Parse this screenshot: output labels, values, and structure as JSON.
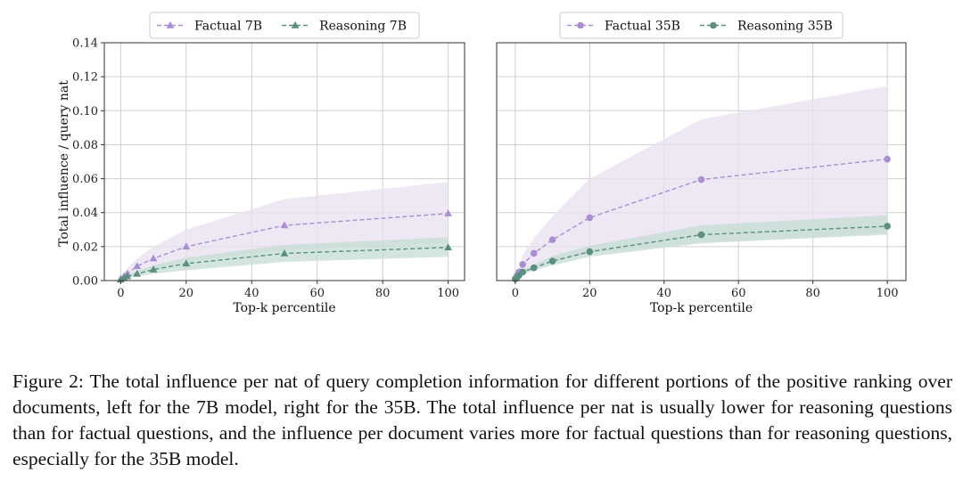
{
  "figure": {
    "caption": "Figure 2: The total influence per nat of query completion information for different portions of the positive ranking over documents, left for the 7B model, right for the 35B. The total influence per nat is usually lower for reasoning questions than for factual questions, and the influence per document varies more for factual questions than for reasoning questions, especially for the 35B model."
  },
  "colors": {
    "factual": "#a98fd1",
    "factual_band": "#e8e0f2",
    "reasoning": "#5b8f7f",
    "reasoning_band": "#c4dcd3",
    "grid": "#d0d0d0",
    "axis": "#333333"
  },
  "chart_data": [
    {
      "type": "line",
      "title": "",
      "xlabel": "Top-k percentile",
      "ylabel": "Total influence / query nat",
      "xlim": [
        -5,
        105
      ],
      "ylim": [
        0,
        0.14
      ],
      "xticks": [
        0,
        20,
        40,
        60,
        80,
        100
      ],
      "yticks": [
        0.0,
        0.02,
        0.04,
        0.06,
        0.08,
        0.1,
        0.12,
        0.14
      ],
      "ytick_labels": [
        "0.00",
        "0.02",
        "0.04",
        "0.06",
        "0.08",
        "0.10",
        "0.12",
        "0.14"
      ],
      "grid": true,
      "legend_position": "top-center",
      "series": [
        {
          "name": "Factual 7B",
          "marker": "triangle",
          "color_key": "factual",
          "x": [
            0,
            1,
            2,
            5,
            10,
            20,
            50,
            100
          ],
          "y": [
            0.001,
            0.0025,
            0.004,
            0.0085,
            0.013,
            0.02,
            0.0325,
            0.0395
          ],
          "band_low": [
            0.0005,
            0.001,
            0.002,
            0.004,
            0.007,
            0.011,
            0.018,
            0.022
          ],
          "band_high": [
            0.0015,
            0.004,
            0.0075,
            0.013,
            0.02,
            0.03,
            0.048,
            0.058
          ]
        },
        {
          "name": "Reasoning 7B",
          "marker": "triangle",
          "color_key": "reasoning",
          "x": [
            0,
            1,
            2,
            5,
            10,
            20,
            50,
            100
          ],
          "y": [
            0.0005,
            0.0015,
            0.0025,
            0.004,
            0.0065,
            0.01,
            0.016,
            0.0195
          ],
          "band_low": [
            0.0002,
            0.0008,
            0.0013,
            0.0025,
            0.004,
            0.006,
            0.011,
            0.014
          ],
          "band_high": [
            0.001,
            0.002,
            0.0035,
            0.0058,
            0.009,
            0.0135,
            0.021,
            0.0255
          ]
        }
      ]
    },
    {
      "type": "line",
      "title": "",
      "xlabel": "Top-k percentile",
      "ylabel": "",
      "xlim": [
        -5,
        105
      ],
      "ylim": [
        0,
        0.14
      ],
      "xticks": [
        0,
        20,
        40,
        60,
        80,
        100
      ],
      "yticks": [],
      "ytick_labels": [],
      "grid": true,
      "legend_position": "top-center",
      "series": [
        {
          "name": "Factual 35B",
          "marker": "circle",
          "color_key": "factual",
          "x": [
            0,
            0.5,
            1,
            2,
            5,
            10,
            20,
            50,
            100
          ],
          "y": [
            0.001,
            0.003,
            0.005,
            0.0095,
            0.016,
            0.024,
            0.037,
            0.0595,
            0.0715
          ],
          "band_low": [
            0.0005,
            0.0015,
            0.0025,
            0.005,
            0.008,
            0.011,
            0.016,
            0.022,
            0.028
          ],
          "band_high": [
            0.002,
            0.005,
            0.008,
            0.015,
            0.025,
            0.038,
            0.06,
            0.095,
            0.1145
          ]
        },
        {
          "name": "Reasoning 35B",
          "marker": "circle",
          "color_key": "reasoning",
          "x": [
            0,
            0.5,
            1,
            2,
            5,
            10,
            20,
            50,
            100
          ],
          "y": [
            0.001,
            0.002,
            0.003,
            0.005,
            0.0075,
            0.0115,
            0.017,
            0.027,
            0.032
          ],
          "band_low": [
            0.0005,
            0.001,
            0.002,
            0.0035,
            0.006,
            0.009,
            0.014,
            0.022,
            0.027
          ],
          "band_high": [
            0.0015,
            0.003,
            0.0045,
            0.0065,
            0.0095,
            0.0145,
            0.0205,
            0.0325,
            0.0385
          ]
        }
      ]
    }
  ]
}
